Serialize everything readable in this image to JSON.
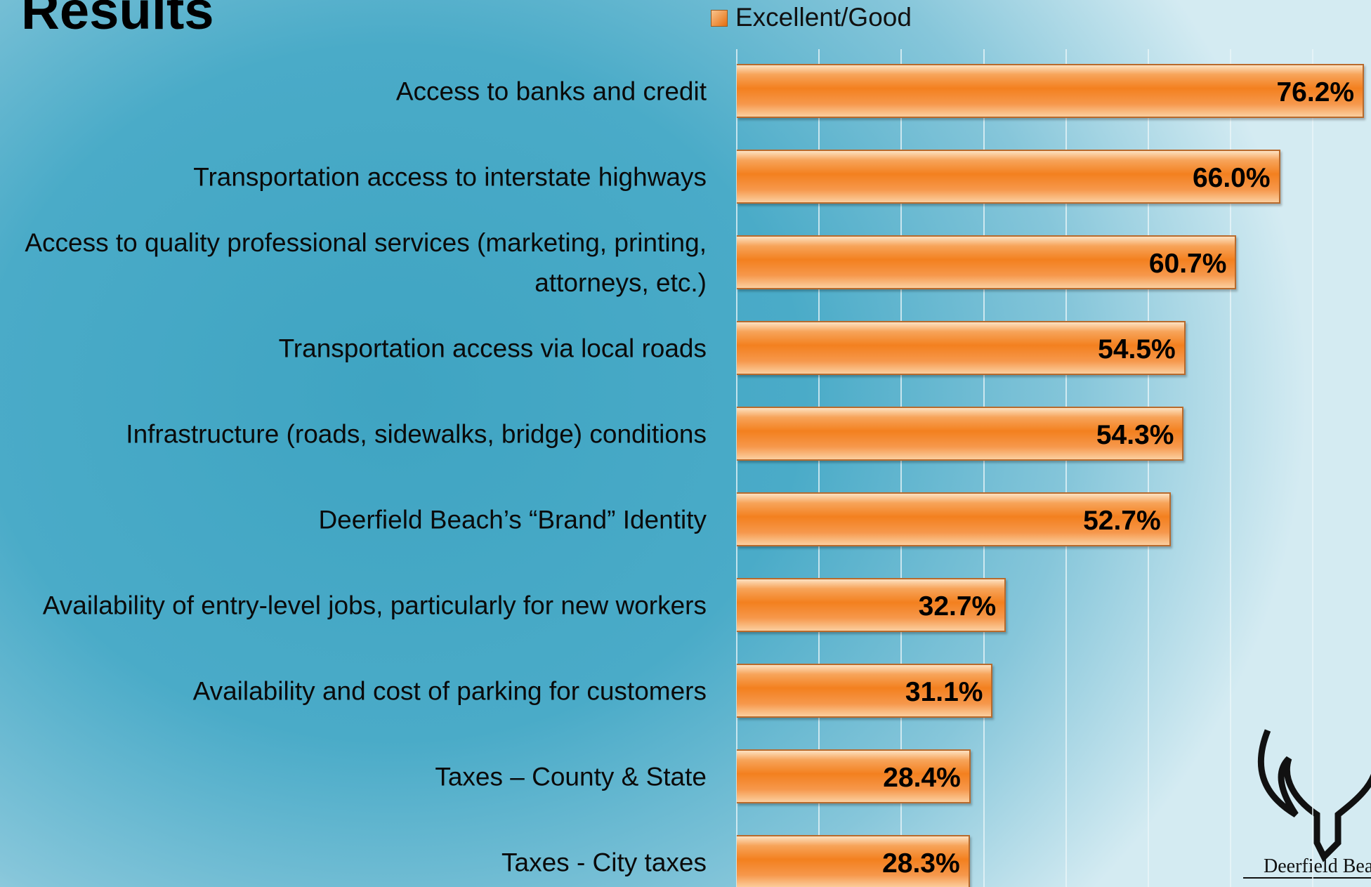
{
  "chart_data": {
    "type": "bar",
    "orientation": "horizontal",
    "title": "Results",
    "categories": [
      "Access to banks and credit",
      "Transportation access to interstate highways",
      "Access to quality professional services (marketing, printing, attorneys, etc.)",
      "Transportation access via local roads",
      "Infrastructure (roads, sidewalks, bridge) conditions",
      "Deerfield Beach’s “Brand” Identity",
      "Availability of entry-level jobs, particularly for new workers",
      "Availability and cost of parking for customers",
      "Taxes – County & State",
      "Taxes - City taxes"
    ],
    "series": [
      {
        "name": "Excellent/Good",
        "color": "#f5862a",
        "values": [
          76.2,
          66.0,
          60.7,
          54.5,
          54.3,
          52.7,
          32.7,
          31.1,
          28.4,
          28.3
        ],
        "value_labels": [
          "76.2%",
          "66.0%",
          "60.7%",
          "54.5%",
          "54.3%",
          "52.7%",
          "32.7%",
          "31.1%",
          "28.4%",
          "28.3%"
        ]
      }
    ],
    "xlim": [
      0,
      80
    ],
    "xticks": [
      0,
      10,
      20,
      30,
      40,
      50,
      60,
      70
    ],
    "grid": true,
    "logo_text": "Deerfield Beach"
  }
}
